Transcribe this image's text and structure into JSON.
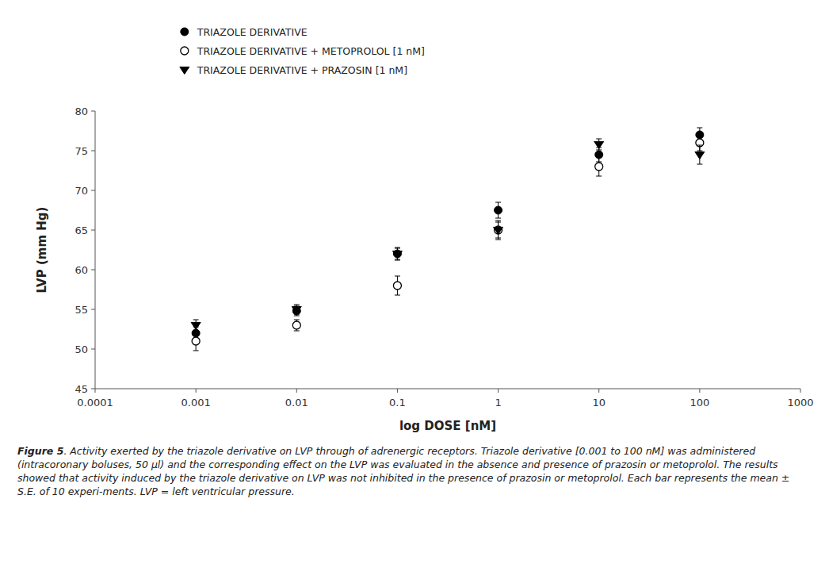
{
  "chart_data": {
    "type": "scatter",
    "x": [
      0.001,
      0.01,
      0.1,
      1,
      10,
      100
    ],
    "xlabel": "log DOSE [nM]",
    "ylabel": "LVP (mm Hg)",
    "log": "x",
    "xlim": [
      0.0001,
      1000
    ],
    "xticks": [
      0.0001,
      0.001,
      0.01,
      0.1,
      1,
      10,
      100,
      1000
    ],
    "ylim": [
      45,
      80
    ],
    "yticks": [
      45,
      50,
      55,
      60,
      65,
      70,
      75,
      80
    ],
    "grid": false,
    "legend": "top",
    "series": [
      {
        "name": "TRIAZOLE DERIVATIVE",
        "color": "black",
        "marker": "circle",
        "values": [
          52.0,
          54.8,
          62.0,
          67.5,
          74.5,
          77.0
        ],
        "errors": [
          0.8,
          0.6,
          0.7,
          1.0,
          0.9,
          0.9
        ]
      },
      {
        "name": "TRIAZOLE DERIVATIVE + METOPROLOL [1 nM]",
        "color": "black",
        "marker": "open-circle",
        "values": [
          51.0,
          53.0,
          58.0,
          65.0,
          73.0,
          76.0
        ],
        "errors": [
          1.2,
          0.7,
          1.2,
          1.0,
          1.2,
          1.0
        ]
      },
      {
        "name": "TRIAZOLE DERIVATIVE + PRAZOSIN [1 nM]",
        "color": "black",
        "marker": "triangle-down",
        "values": [
          53.0,
          55.0,
          62.0,
          65.0,
          75.8,
          74.5
        ],
        "errors": [
          0.7,
          0.6,
          0.8,
          1.2,
          0.7,
          1.2
        ]
      }
    ],
    "caption": {
      "label": "Figure 5",
      "text": ". Activity exerted by the triazole derivative on LVP through of adrenergic receptors. Triazole derivative [0.001 to 100 nM] was administered (intracoronary boluses, 50 μl) and the corresponding effect on the LVP was evaluated in the absence and presence of prazosin or metoprolol. The results showed that activity induced by the triazole derivative on LVP was not inhibited in the presence of prazosin or metoprolol. Each bar represents the mean ± S.E. of 10 experi-ments. LVP = left ventricular pressure."
    }
  }
}
